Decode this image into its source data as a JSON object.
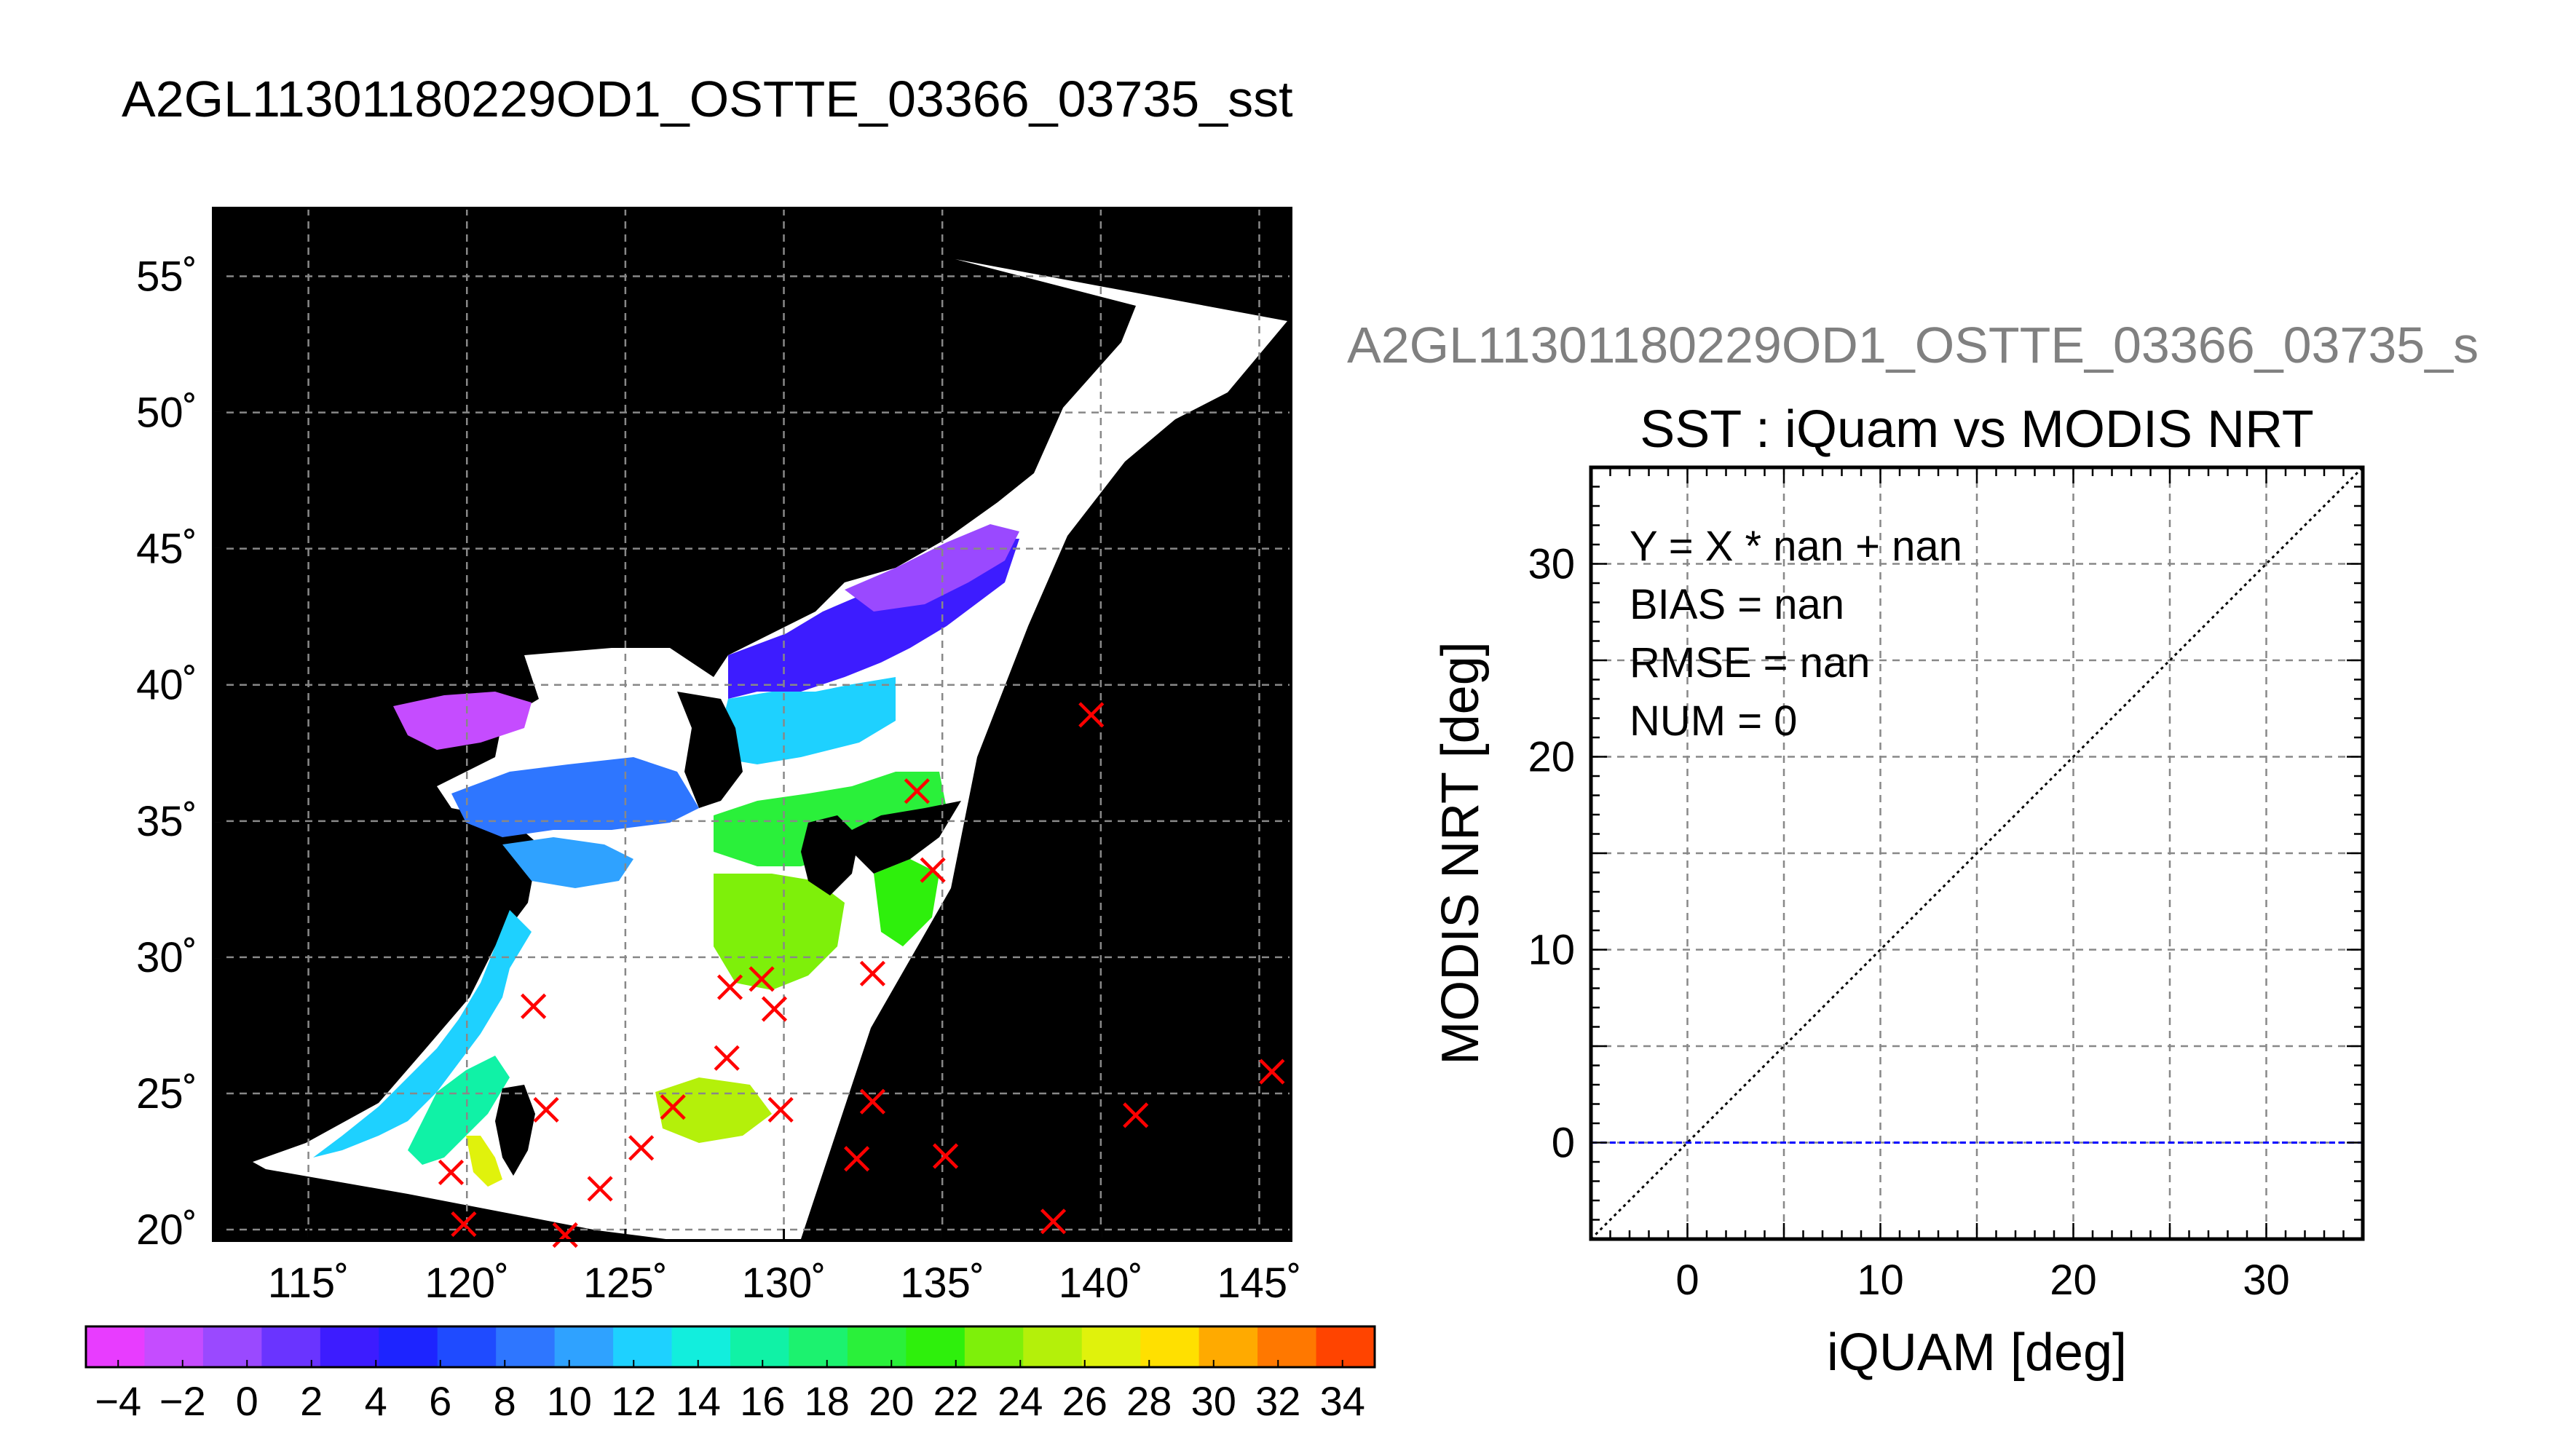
{
  "figure": {
    "title": "A2GL11301180229OD1_OSTTE_03366_03735_sst"
  },
  "colors": {
    "background": "#ffffff",
    "map_ocean": "#000000",
    "land_cloud": "#ffffff",
    "marker": "#ff0000",
    "grid": "#888888",
    "zero_line": "#0000ff",
    "one_to_one": "#000000"
  },
  "chart_data": [
    {
      "type": "heatmap",
      "name": "sst-map",
      "lon_ticks": [
        115,
        120,
        125,
        130,
        135,
        140,
        145
      ],
      "lat_ticks": [
        20,
        25,
        30,
        35,
        40,
        45,
        50,
        55
      ],
      "lon_tick_labels": [
        "115˚",
        "120˚",
        "125˚",
        "130˚",
        "135˚",
        "140˚",
        "145˚"
      ],
      "lat_tick_labels": [
        "20˚",
        "25˚",
        "30˚",
        "35˚",
        "40˚",
        "45˚",
        "50˚",
        "55˚"
      ],
      "xlim": [
        112,
        146
      ],
      "ylim": [
        19.6,
        57.5
      ],
      "grid": true,
      "markers": [
        [
          139.7,
          38.9
        ],
        [
          134.2,
          36.1
        ],
        [
          134.7,
          33.2
        ],
        [
          132.8,
          29.4
        ],
        [
          128.3,
          28.9
        ],
        [
          129.3,
          29.2
        ],
        [
          129.7,
          28.1
        ],
        [
          122.1,
          28.2
        ],
        [
          128.2,
          26.3
        ],
        [
          122.5,
          24.4
        ],
        [
          126.5,
          24.5
        ],
        [
          129.9,
          24.4
        ],
        [
          132.8,
          24.7
        ],
        [
          125.5,
          23.0
        ],
        [
          119.5,
          22.1
        ],
        [
          124.2,
          21.5
        ],
        [
          132.3,
          22.6
        ],
        [
          135.1,
          22.7
        ],
        [
          141.1,
          24.2
        ],
        [
          145.4,
          25.8
        ],
        [
          138.5,
          20.3
        ],
        [
          119.9,
          20.2
        ],
        [
          123.1,
          19.8
        ]
      ],
      "colorbar": {
        "min": -5,
        "max": 35,
        "step": 2,
        "tick_labels": [
          "−4",
          "−2",
          "0",
          "2",
          "4",
          "6",
          "8",
          "10",
          "12",
          "14",
          "16",
          "18",
          "20",
          "22",
          "24",
          "26",
          "28",
          "30",
          "32",
          "34"
        ],
        "colors": [
          "#e83cff",
          "#c54cff",
          "#9a49ff",
          "#6a34ff",
          "#3d1cff",
          "#1d24ff",
          "#1f4bff",
          "#2e76ff",
          "#2fa2ff",
          "#1ed1ff",
          "#12eedd",
          "#10f2a6",
          "#1cf26f",
          "#2af03a",
          "#2ef00c",
          "#7ef00a",
          "#b4f00a",
          "#e0f20c",
          "#ffe000",
          "#ffaa00",
          "#ff7800",
          "#ff4400"
        ]
      }
    },
    {
      "type": "scatter",
      "name": "sst-scatter",
      "header": "A2GL11301180229OD1_OSTTE_03366_03735_s",
      "title": "SST : iQuam vs MODIS NRT",
      "xlabel": "iQUAM [deg]",
      "ylabel": "MODIS NRT [deg]",
      "xlim": [
        -5,
        35
      ],
      "ylim": [
        -5,
        35
      ],
      "xticks": [
        0,
        10,
        20,
        30
      ],
      "yticks": [
        0,
        10,
        20,
        30
      ],
      "grid_step": 5,
      "grid": true,
      "points": [],
      "reference_lines": [
        {
          "kind": "one-to-one",
          "style": "dotted"
        },
        {
          "kind": "y=0",
          "style": "dashed"
        }
      ],
      "stats": {
        "fit": "Y = X * nan + nan",
        "bias": "BIAS = nan",
        "rmse": "RMSE = nan",
        "num": "NUM = 0"
      }
    }
  ]
}
